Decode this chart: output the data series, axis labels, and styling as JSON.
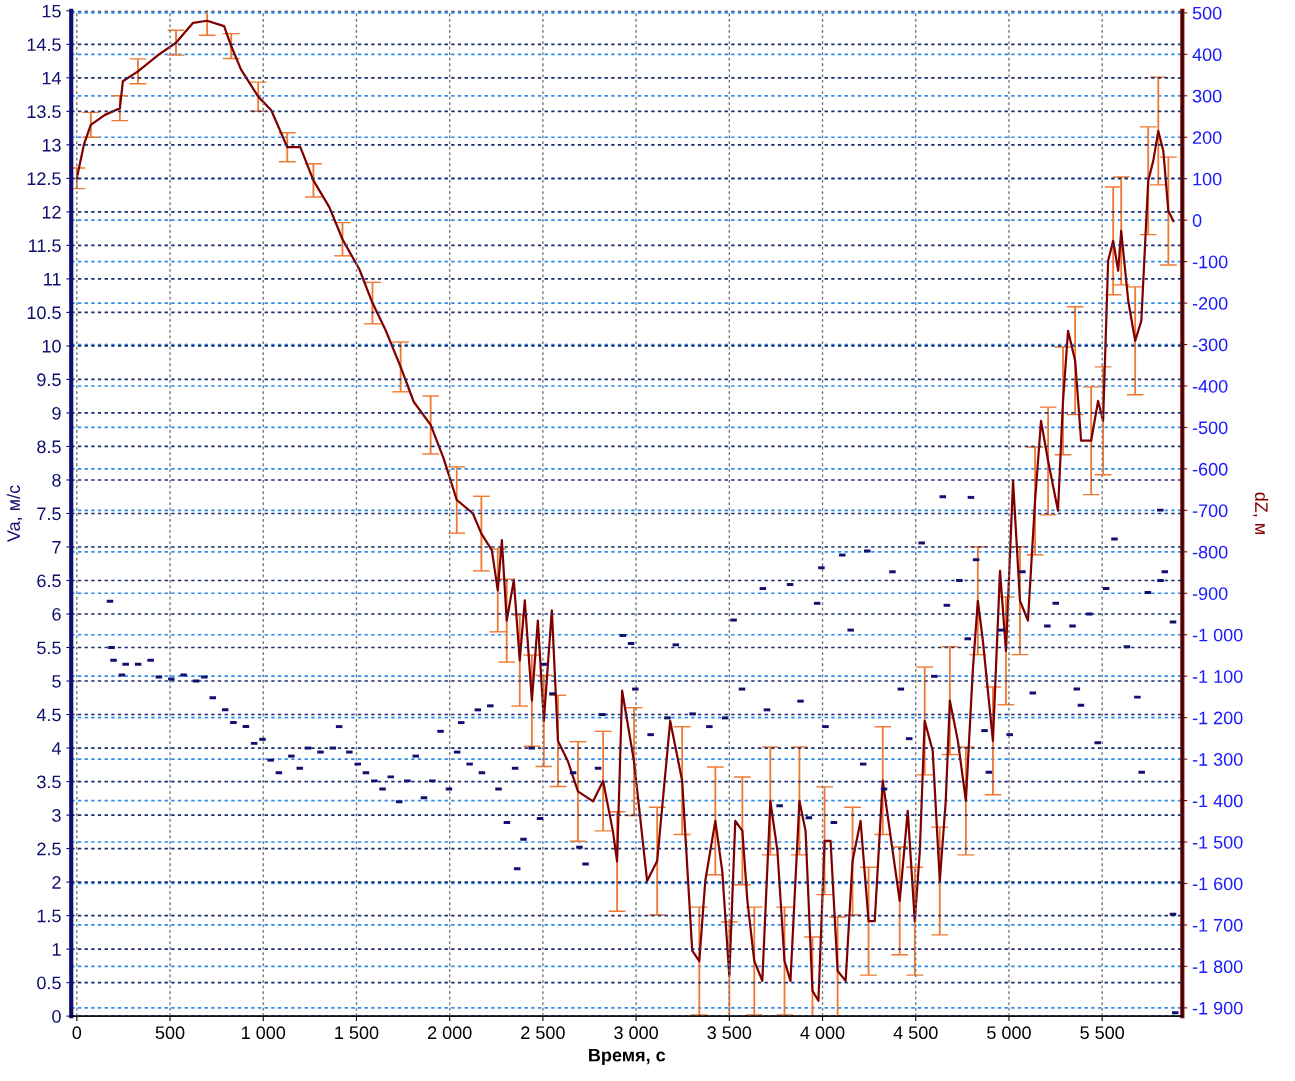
{
  "chart_data": {
    "type": "line",
    "xlabel": "Время, с",
    "ylabel": "Va, м/с",
    "y2label": "dZ, м",
    "grid": true,
    "xlim": [
      -30,
      5930
    ],
    "ylim": [
      0,
      15
    ],
    "y2lim": [
      -1920,
      505
    ],
    "xticks": [
      0,
      500,
      {
        "value": 1000,
        "label": "1 000"
      },
      {
        "value": 1500,
        "label": "1 500"
      },
      {
        "value": 2000,
        "label": "2 000"
      },
      {
        "value": 2500,
        "label": "2 500"
      },
      {
        "value": 3000,
        "label": "3 000"
      },
      {
        "value": 3500,
        "label": "3 500"
      },
      {
        "value": 4000,
        "label": "4 000"
      },
      {
        "value": 4500,
        "label": "4 500"
      },
      {
        "value": 5000,
        "label": "5 000"
      },
      {
        "value": 5500,
        "label": "5 500"
      }
    ],
    "yticks": [
      0,
      0.5,
      1,
      1.5,
      2,
      2.5,
      3,
      3.5,
      4,
      4.5,
      5,
      5.5,
      6,
      6.5,
      7,
      7.5,
      8,
      8.5,
      9,
      9.5,
      10,
      10.5,
      11,
      11.5,
      12,
      12.5,
      13,
      13.5,
      14,
      14.5,
      15
    ],
    "y2ticks": [
      {
        "value": -1900,
        "label": "-1 900"
      },
      {
        "value": -1800,
        "label": "-1 800"
      },
      {
        "value": -1700,
        "label": "-1 700"
      },
      {
        "value": -1600,
        "label": "-1 600"
      },
      {
        "value": -1500,
        "label": "-1 500"
      },
      {
        "value": -1400,
        "label": "-1 400"
      },
      {
        "value": -1300,
        "label": "-1 300"
      },
      {
        "value": -1200,
        "label": "-1 200"
      },
      {
        "value": -1100,
        "label": "-1 100"
      },
      {
        "value": -1000,
        "label": "-1 000"
      },
      -900,
      -800,
      -700,
      -600,
      -500,
      -400,
      -300,
      -200,
      -100,
      0,
      100,
      200,
      300,
      400,
      500
    ],
    "series": [
      {
        "type": "scatter",
        "marker": "square",
        "color": "#10106e",
        "x": [
          178,
          186,
          197,
          242,
          262,
          329,
          396,
          440,
          507,
          573,
          640,
          684,
          729,
          796,
          840,
          907,
          951,
          996,
          1040,
          1084,
          1151,
          1196,
          1240,
          1307,
          1373,
          1407,
          1462,
          1507,
          1551,
          1596,
          1640,
          1684,
          1729,
          1773,
          1818,
          1862,
          1907,
          1951,
          1996,
          2040,
          2062,
          2107,
          2151,
          2173,
          2218,
          2262,
          2307,
          2351,
          2362,
          2396,
          2440,
          2485,
          2507,
          2551,
          2662,
          2696,
          2729,
          2796,
          2818,
          2929,
          2973,
          2996,
          3078,
          3168,
          3213,
          3303,
          3393,
          3478,
          3523,
          3568,
          3680,
          3702,
          3770,
          3826,
          3882,
          3927,
          3971,
          3994,
          4016,
          4061,
          4106,
          4151,
          4218,
          4240,
          4330,
          4375,
          4420,
          4465,
          4532,
          4600,
          4645,
          4667,
          4734,
          4779,
          4796,
          4824,
          4869,
          4892,
          4959,
          5004,
          5072,
          5128,
          5206,
          5251,
          5341,
          5364,
          5386,
          5431,
          5476,
          5521,
          5566,
          5633,
          5689,
          5712,
          5745,
          5812,
          5813,
          5836,
          5880,
          5880,
          5892
        ],
        "values": [
          6.19,
          5.5,
          5.31,
          5.09,
          5.25,
          5.25,
          5.31,
          5.06,
          5.03,
          5.09,
          5.0,
          5.06,
          4.75,
          4.57,
          4.38,
          4.32,
          4.07,
          4.13,
          3.82,
          3.63,
          3.88,
          3.7,
          4.0,
          3.94,
          4.0,
          4.32,
          3.94,
          3.76,
          3.63,
          3.51,
          3.39,
          3.57,
          3.2,
          3.51,
          3.88,
          3.26,
          3.51,
          4.25,
          3.39,
          3.94,
          4.38,
          3.76,
          4.57,
          3.63,
          4.63,
          3.39,
          2.89,
          3.7,
          2.2,
          2.64,
          4.0,
          2.95,
          5.25,
          4.81,
          3.63,
          2.52,
          2.27,
          3.7,
          4.5,
          5.68,
          5.56,
          4.88,
          4.2,
          4.45,
          5.54,
          4.51,
          4.32,
          4.45,
          5.91,
          4.88,
          6.38,
          4.57,
          3.14,
          6.44,
          4.7,
          2.96,
          6.16,
          6.69,
          4.32,
          2.89,
          6.88,
          5.76,
          3.76,
          6.94,
          3.39,
          6.63,
          4.88,
          4.14,
          7.06,
          5.07,
          7.75,
          6.13,
          6.5,
          5.63,
          7.74,
          6.81,
          4.26,
          3.64,
          5.76,
          4.2,
          6.63,
          4.82,
          5.82,
          6.16,
          5.82,
          4.88,
          4.64,
          6.0,
          4.08,
          6.38,
          7.12,
          5.51,
          4.76,
          3.64,
          6.32,
          7.55,
          6.5,
          6.63,
          5.88,
          1.52,
          0.05
        ]
      },
      {
        "axis": "y2",
        "color": "#800000",
        "x": [
          0,
          38,
          75,
          151,
          231,
          247,
          328,
          441,
          532,
          624,
          699,
          790,
          828,
          881,
          973,
          1043,
          1129,
          1199,
          1269,
          1355,
          1425,
          1516,
          1586,
          1656,
          1737,
          1807,
          1898,
          1968,
          2038,
          2124,
          2170,
          2226,
          2258,
          2280,
          2306,
          2344,
          2376,
          2403,
          2441,
          2473,
          2505,
          2548,
          2581,
          2634,
          2688,
          2769,
          2823,
          2876,
          2898,
          2925,
          2989,
          3059,
          3113,
          3183,
          3247,
          3301,
          3339,
          3371,
          3425,
          3462,
          3500,
          3532,
          3570,
          3597,
          3634,
          3677,
          3720,
          3758,
          3796,
          3828,
          3876,
          3909,
          3946,
          3978,
          4011,
          4043,
          4081,
          4124,
          4161,
          4204,
          4247,
          4280,
          4323,
          4376,
          4414,
          4457,
          4495,
          4522,
          4548,
          4591,
          4629,
          4661,
          4683,
          4726,
          4769,
          4806,
          4833,
          4860,
          4914,
          4952,
          4984,
          5022,
          5059,
          5102,
          5140,
          5172,
          5210,
          5263,
          5290,
          5317,
          5355,
          5387,
          5441,
          5478,
          5505,
          5532,
          5559,
          5586,
          5602,
          5640,
          5677,
          5710,
          5747,
          5774,
          5801,
          5828,
          5855,
          5882
        ],
        "values": [
          101,
          182,
          230,
          254,
          270,
          335,
          359,
          400,
          428,
          476,
          481,
          468,
          420,
          363,
          298,
          265,
          176,
          176,
          96,
          31,
          -46,
          -119,
          -200,
          -265,
          -354,
          -438,
          -494,
          -575,
          -675,
          -707,
          -756,
          -796,
          -893,
          -772,
          -966,
          -869,
          -1062,
          -917,
          -1159,
          -966,
          -1208,
          -941,
          -1256,
          -1305,
          -1378,
          -1402,
          -1353,
          -1475,
          -1547,
          -1135,
          -1306,
          -1594,
          -1546,
          -1208,
          -1352,
          -1762,
          -1787,
          -1594,
          -1449,
          -1570,
          -1823,
          -1449,
          -1473,
          -1642,
          -1787,
          -1835,
          -1401,
          -1521,
          -1787,
          -1835,
          -1401,
          -1473,
          -1859,
          -1883,
          -1497,
          -1497,
          -1811,
          -1835,
          -1546,
          -1449,
          -1691,
          -1691,
          -1352,
          -1521,
          -1642,
          -1425,
          -1691,
          -1521,
          -1208,
          -1280,
          -1594,
          -1401,
          -1159,
          -1256,
          -1401,
          -1087,
          -918,
          -1014,
          -1256,
          -846,
          -1039,
          -629,
          -918,
          -966,
          -677,
          -484,
          -581,
          -701,
          -436,
          -267,
          -339,
          -532,
          -532,
          -436,
          -484,
          -98,
          -50,
          -122,
          -26,
          -195,
          -291,
          -243,
          95,
          143,
          215,
          167,
          22,
          -2
        ],
        "errors": [
          25,
          null,
          30,
          null,
          30,
          null,
          30,
          null,
          30,
          null,
          35,
          null,
          30,
          null,
          35,
          null,
          35,
          null,
          40,
          null,
          40,
          null,
          50,
          null,
          60,
          null,
          70,
          null,
          80,
          null,
          90,
          null,
          100,
          null,
          100,
          null,
          110,
          null,
          110,
          null,
          110,
          null,
          110,
          null,
          120,
          null,
          120,
          null,
          120,
          null,
          130,
          null,
          130,
          null,
          130,
          null,
          130,
          null,
          130,
          null,
          130,
          null,
          130,
          null,
          130,
          null,
          130,
          null,
          130,
          null,
          130,
          null,
          130,
          null,
          130,
          null,
          130,
          null,
          130,
          null,
          130,
          null,
          130,
          null,
          130,
          null,
          130,
          null,
          130,
          null,
          130,
          null,
          130,
          null,
          130,
          null,
          130,
          null,
          130,
          null,
          130,
          null,
          130,
          null,
          130,
          null,
          130,
          null,
          130,
          null,
          130,
          null,
          130,
          null,
          130,
          null,
          130,
          null,
          130,
          null,
          130,
          null,
          130,
          null,
          130,
          null,
          130,
          null
        ]
      }
    ]
  }
}
